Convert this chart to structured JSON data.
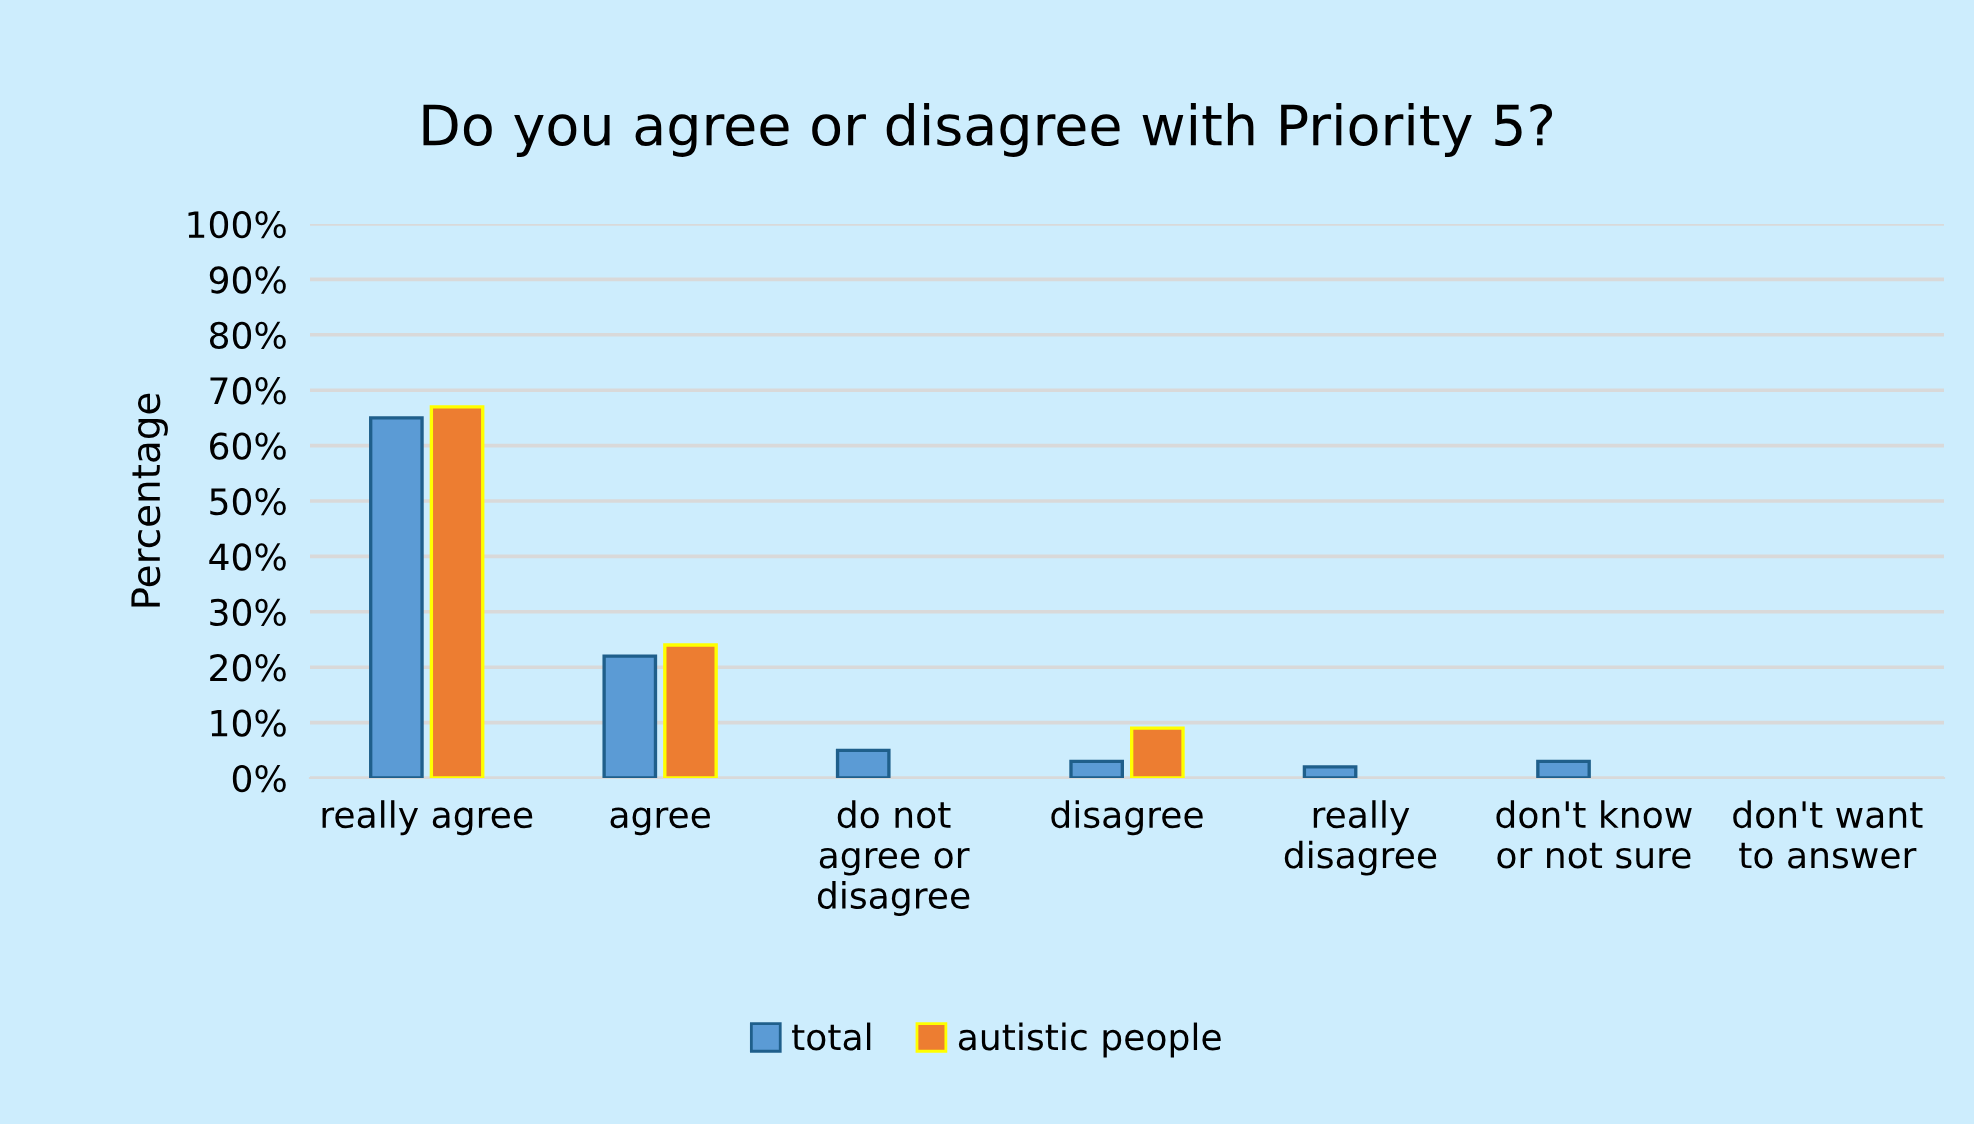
{
  "chart_data": {
    "type": "bar",
    "title": "Do you agree or disagree with Priority 5?",
    "ylabel": "Percentage",
    "categories": [
      "really agree",
      "agree",
      "do not\nagree or\ndisagree",
      "disagree",
      "really\ndisagree",
      "don't know\nor not sure",
      "don't want\nto answer"
    ],
    "series": [
      {
        "name": "total",
        "color": "#5b9bd5",
        "values": [
          65,
          22,
          5,
          3,
          2,
          3,
          null
        ]
      },
      {
        "name": "autistic people",
        "color": "#ed7d31",
        "values": [
          67,
          24,
          null,
          9,
          null,
          null,
          null
        ]
      }
    ],
    "ylim": [
      0,
      100
    ],
    "yticks": [
      {
        "value": 0,
        "label": "0%"
      },
      {
        "value": 10,
        "label": "10%"
      },
      {
        "value": 20,
        "label": "20%"
      },
      {
        "value": 30,
        "label": "30%"
      },
      {
        "value": 40,
        "label": "40%"
      },
      {
        "value": 50,
        "label": "50%"
      },
      {
        "value": 60,
        "label": "60%"
      },
      {
        "value": 70,
        "label": "70%"
      },
      {
        "value": 80,
        "label": "80%"
      },
      {
        "value": 90,
        "label": "90%"
      },
      {
        "value": 100,
        "label": "100%"
      }
    ],
    "grid": "y",
    "legend": "bottom"
  }
}
